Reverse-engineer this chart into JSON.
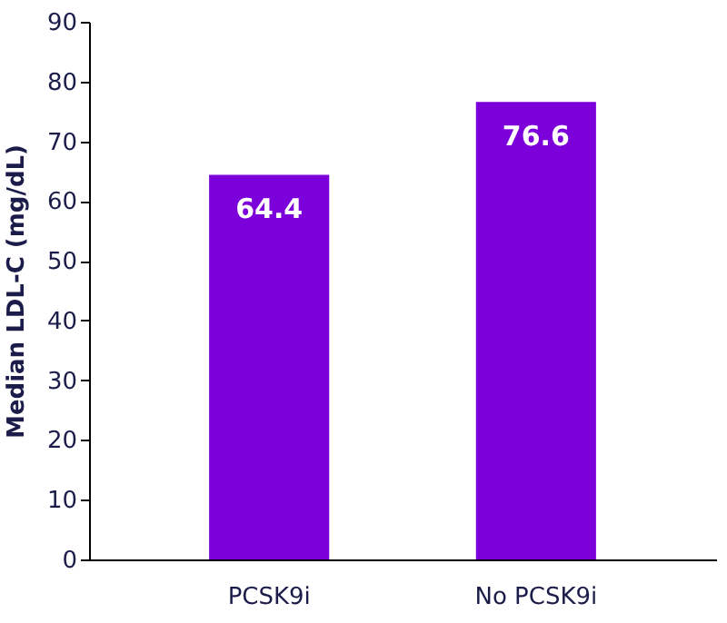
{
  "chart_data": {
    "type": "bar",
    "ylabel": "Median LDL-C (mg/dL)",
    "categories": [
      "PCSK9i",
      "No PCSK9i"
    ],
    "values": [
      64.4,
      76.6
    ],
    "color": "#7b00d9",
    "ylim": [
      0,
      90
    ],
    "yticks": [
      0,
      10,
      20,
      30,
      40,
      50,
      60,
      70,
      80,
      90
    ],
    "grid": false,
    "data_labels": true
  }
}
